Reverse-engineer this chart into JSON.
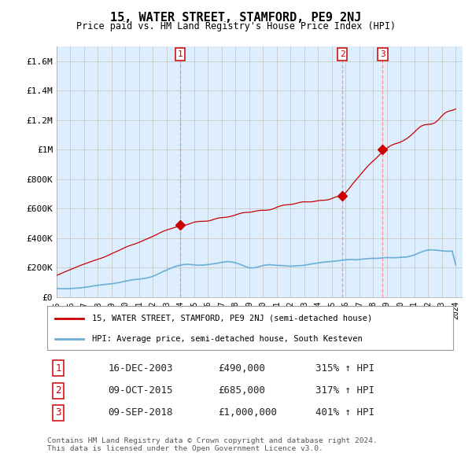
{
  "title": "15, WATER STREET, STAMFORD, PE9 2NJ",
  "subtitle": "Price paid vs. HM Land Registry's House Price Index (HPI)",
  "ylabel_ticks": [
    "£0",
    "£200K",
    "£400K",
    "£600K",
    "£800K",
    "£1M",
    "£1.2M",
    "£1.4M",
    "£1.6M"
  ],
  "ylabel_values": [
    0,
    200000,
    400000,
    600000,
    800000,
    1000000,
    1200000,
    1400000,
    1600000
  ],
  "ylim": [
    0,
    1700000
  ],
  "hpi_color": "#6baed6",
  "price_color": "#cc0000",
  "vline_color": "#ff8888",
  "grid_color": "#cccccc",
  "chart_bg": "#ddeeff",
  "bg_color": "#ffffff",
  "legend_label_price": "15, WATER STREET, STAMFORD, PE9 2NJ (semi-detached house)",
  "legend_label_hpi": "HPI: Average price, semi-detached house, South Kesteven",
  "footnote1": "Contains HM Land Registry data © Crown copyright and database right 2024.",
  "footnote2": "This data is licensed under the Open Government Licence v3.0.",
  "transactions": [
    {
      "num": 1,
      "date": "16-DEC-2003",
      "price": "£490,000",
      "pct": "315% ↑ HPI",
      "year": 2003.96,
      "value": 490000
    },
    {
      "num": 2,
      "date": "09-OCT-2015",
      "price": "£685,000",
      "pct": "317% ↑ HPI",
      "year": 2015.77,
      "value": 685000
    },
    {
      "num": 3,
      "date": "09-SEP-2018",
      "price": "£1,000,000",
      "pct": "401% ↑ HPI",
      "year": 2018.69,
      "value": 1000000
    }
  ],
  "hpi_years": [
    1995.0,
    1995.25,
    1995.5,
    1995.75,
    1996.0,
    1996.25,
    1996.5,
    1996.75,
    1997.0,
    1997.25,
    1997.5,
    1997.75,
    1998.0,
    1998.25,
    1998.5,
    1998.75,
    1999.0,
    1999.25,
    1999.5,
    1999.75,
    2000.0,
    2000.25,
    2000.5,
    2000.75,
    2001.0,
    2001.25,
    2001.5,
    2001.75,
    2002.0,
    2002.25,
    2002.5,
    2002.75,
    2003.0,
    2003.25,
    2003.5,
    2003.75,
    2004.0,
    2004.25,
    2004.5,
    2004.75,
    2005.0,
    2005.25,
    2005.5,
    2005.75,
    2006.0,
    2006.25,
    2006.5,
    2006.75,
    2007.0,
    2007.25,
    2007.5,
    2007.75,
    2008.0,
    2008.25,
    2008.5,
    2008.75,
    2009.0,
    2009.25,
    2009.5,
    2009.75,
    2010.0,
    2010.25,
    2010.5,
    2010.75,
    2011.0,
    2011.25,
    2011.5,
    2011.75,
    2012.0,
    2012.25,
    2012.5,
    2012.75,
    2013.0,
    2013.25,
    2013.5,
    2013.75,
    2014.0,
    2014.25,
    2014.5,
    2014.75,
    2015.0,
    2015.25,
    2015.5,
    2015.75,
    2016.0,
    2016.25,
    2016.5,
    2016.75,
    2017.0,
    2017.25,
    2017.5,
    2017.75,
    2018.0,
    2018.25,
    2018.5,
    2018.75,
    2019.0,
    2019.25,
    2019.5,
    2019.75,
    2020.0,
    2020.25,
    2020.5,
    2020.75,
    2021.0,
    2021.25,
    2021.5,
    2021.75,
    2022.0,
    2022.25,
    2022.5,
    2022.75,
    2023.0,
    2023.25,
    2023.5,
    2023.75,
    2024.0
  ],
  "hpi_values": [
    57000,
    56500,
    56000,
    55500,
    57000,
    58500,
    60000,
    62000,
    65000,
    68000,
    72000,
    76000,
    79000,
    82000,
    85000,
    87000,
    90000,
    93000,
    97000,
    102000,
    107000,
    112000,
    116000,
    119000,
    121000,
    124000,
    128000,
    133000,
    140000,
    150000,
    162000,
    173000,
    183000,
    193000,
    203000,
    210000,
    215000,
    220000,
    222000,
    220000,
    218000,
    215000,
    216000,
    217000,
    220000,
    223000,
    226000,
    230000,
    235000,
    238000,
    240000,
    237000,
    232000,
    224000,
    215000,
    205000,
    198000,
    197000,
    200000,
    207000,
    213000,
    217000,
    219000,
    217000,
    214000,
    214000,
    212000,
    210000,
    209000,
    210000,
    212000,
    213000,
    215000,
    219000,
    224000,
    227000,
    231000,
    235000,
    237000,
    239000,
    241000,
    243000,
    246000,
    249000,
    252000,
    254000,
    254000,
    252000,
    254000,
    257000,
    259000,
    261000,
    262000,
    262000,
    263000,
    266000,
    267000,
    267000,
    266000,
    267000,
    269000,
    270000,
    272000,
    278000,
    285000,
    295000,
    305000,
    313000,
    318000,
    320000,
    318000,
    316000,
    313000,
    311000,
    310000,
    312000,
    218000
  ],
  "price_anchor_years": [
    1995.0,
    2003.96,
    2015.77,
    2018.69,
    2024.2
  ],
  "price_anchor_values": [
    145000,
    490000,
    685000,
    1000000,
    1280000
  ]
}
